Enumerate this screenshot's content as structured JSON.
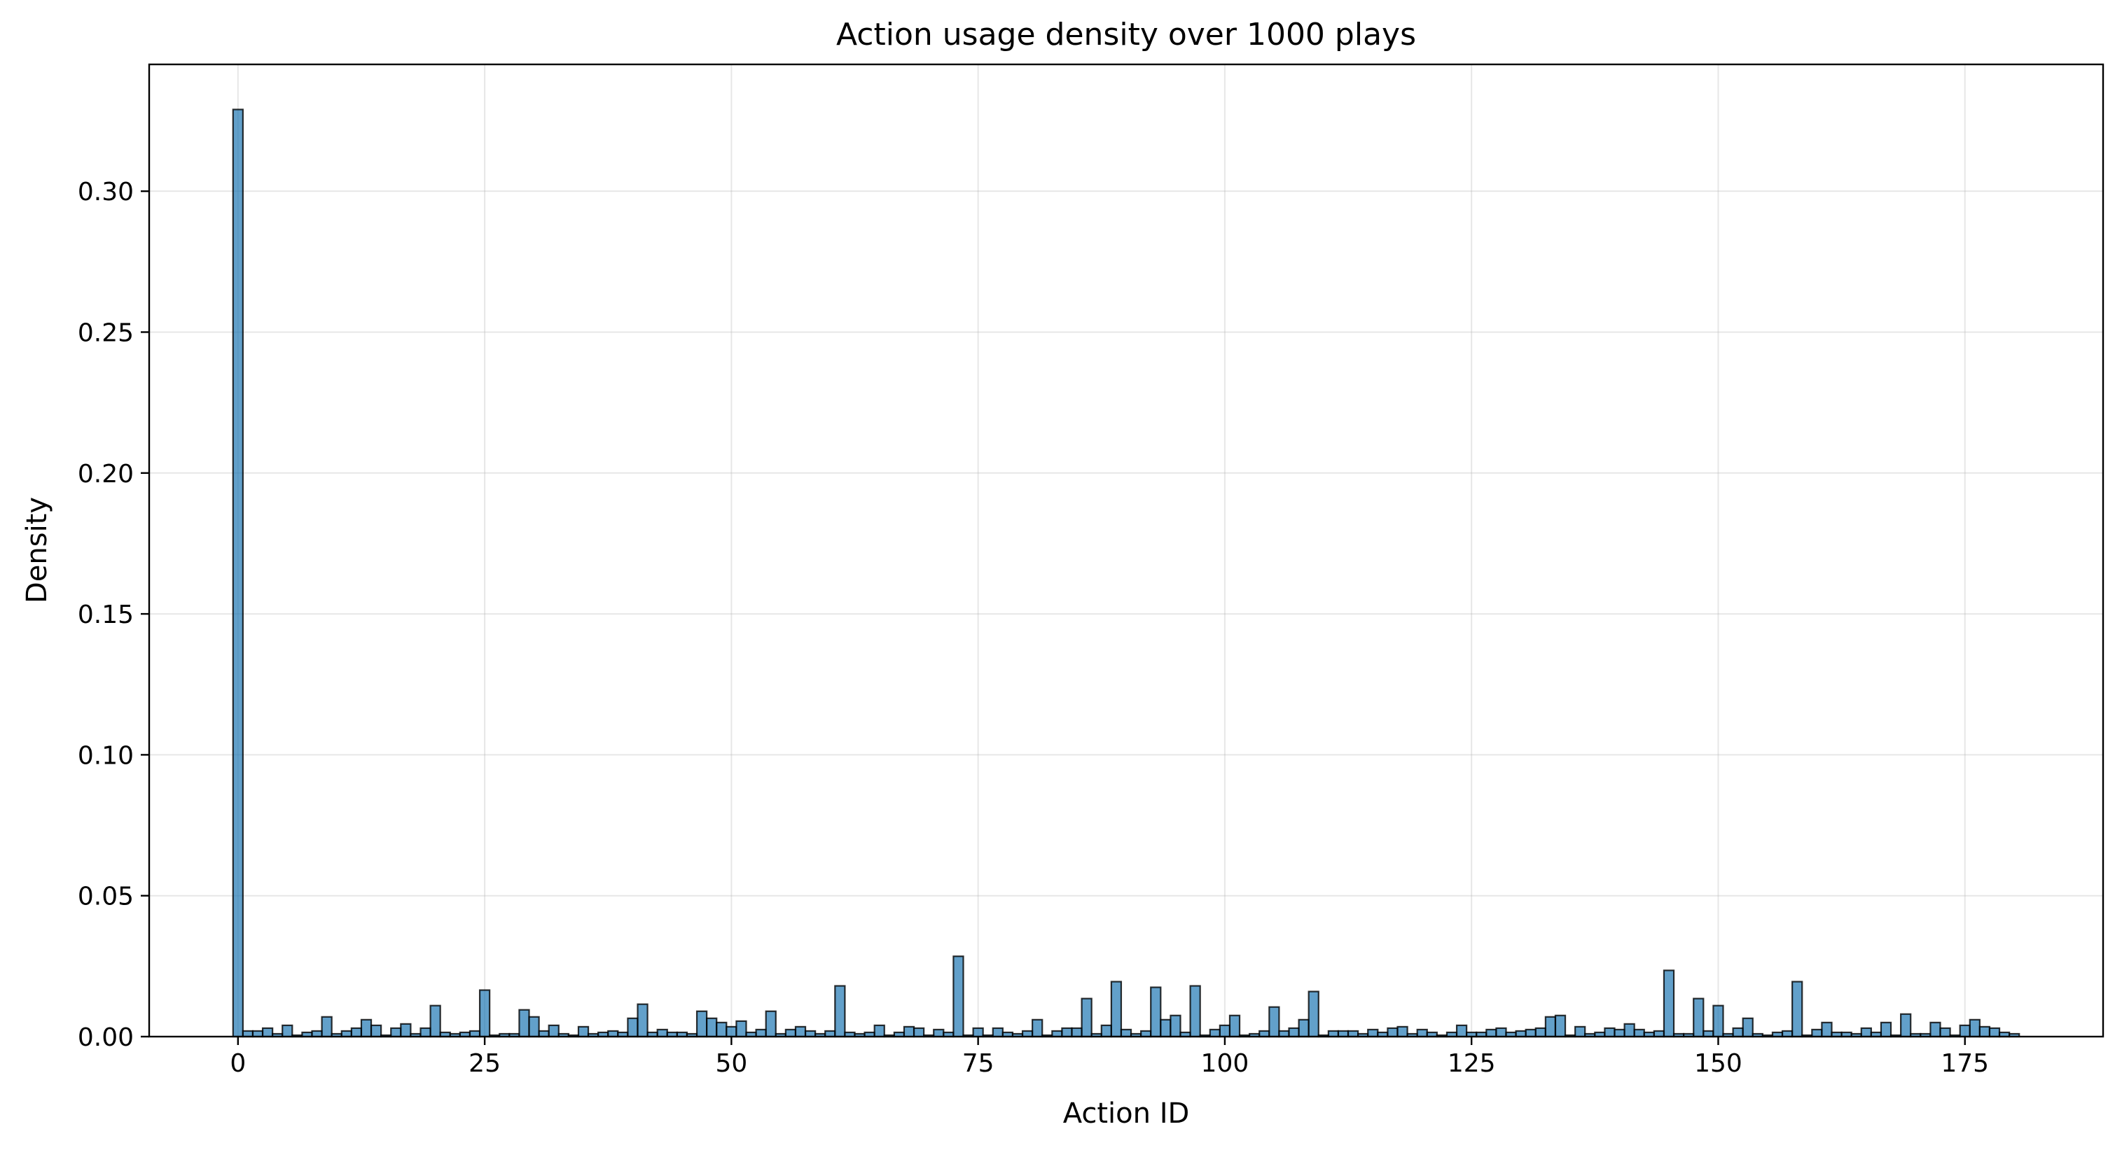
{
  "chart_data": {
    "type": "bar",
    "title": "Action usage density over 1000 plays",
    "xlabel": "Action ID",
    "ylabel": "Density",
    "xlim": [
      -9,
      189
    ],
    "ylim": [
      0,
      0.345
    ],
    "grid": true,
    "bar_color": "#1f77b4",
    "edge_color": "#000000",
    "x_ticks": [
      {
        "value": 0,
        "label": "0"
      },
      {
        "value": 25,
        "label": "25"
      },
      {
        "value": 50,
        "label": "50"
      },
      {
        "value": 75,
        "label": "75"
      },
      {
        "value": 100,
        "label": "100"
      },
      {
        "value": 125,
        "label": "125"
      },
      {
        "value": 150,
        "label": "150"
      },
      {
        "value": 175,
        "label": "175"
      }
    ],
    "y_ticks": [
      {
        "value": 0.0,
        "label": "0.00"
      },
      {
        "value": 0.05,
        "label": "0.05"
      },
      {
        "value": 0.1,
        "label": "0.10"
      },
      {
        "value": 0.15,
        "label": "0.15"
      },
      {
        "value": 0.2,
        "label": "0.20"
      },
      {
        "value": 0.25,
        "label": "0.25"
      },
      {
        "value": 0.3,
        "label": "0.30"
      }
    ],
    "bin_start": 0,
    "bin_width": 1,
    "values": [
      0.329,
      0.002,
      0.002,
      0.003,
      0.001,
      0.004,
      0.0005,
      0.0015,
      0.002,
      0.007,
      0.001,
      0.002,
      0.003,
      0.006,
      0.004,
      0.0005,
      0.003,
      0.0045,
      0.001,
      0.003,
      0.011,
      0.0015,
      0.001,
      0.0015,
      0.002,
      0.0165,
      0.0005,
      0.001,
      0.001,
      0.0095,
      0.007,
      0.002,
      0.004,
      0.001,
      0.0005,
      0.0035,
      0.001,
      0.0015,
      0.002,
      0.0015,
      0.0065,
      0.0115,
      0.0015,
      0.0025,
      0.0015,
      0.0015,
      0.001,
      0.009,
      0.0065,
      0.005,
      0.0035,
      0.0055,
      0.0015,
      0.0025,
      0.009,
      0.001,
      0.0025,
      0.0035,
      0.002,
      0.001,
      0.002,
      0.018,
      0.0015,
      0.001,
      0.0015,
      0.004,
      0.0005,
      0.0015,
      0.0035,
      0.003,
      0.0005,
      0.0025,
      0.0015,
      0.0285,
      0.0005,
      0.003,
      0.0005,
      0.003,
      0.0015,
      0.001,
      0.002,
      0.006,
      0.0005,
      0.002,
      0.003,
      0.003,
      0.0135,
      0.001,
      0.004,
      0.0195,
      0.0025,
      0.001,
      0.002,
      0.0175,
      0.006,
      0.0075,
      0.0015,
      0.018,
      0.0005,
      0.0025,
      0.004,
      0.0075,
      0.0005,
      0.001,
      0.002,
      0.0105,
      0.002,
      0.003,
      0.006,
      0.016,
      0.0005,
      0.002,
      0.002,
      0.002,
      0.001,
      0.0025,
      0.0015,
      0.003,
      0.0035,
      0.001,
      0.0025,
      0.0015,
      0.0005,
      0.0015,
      0.004,
      0.0015,
      0.0015,
      0.0025,
      0.003,
      0.0015,
      0.002,
      0.0025,
      0.003,
      0.007,
      0.0075,
      0.0005,
      0.0035,
      0.001,
      0.0015,
      0.003,
      0.0025,
      0.0045,
      0.0025,
      0.0015,
      0.002,
      0.0235,
      0.001,
      0.001,
      0.0135,
      0.002,
      0.011,
      0.001,
      0.003,
      0.0065,
      0.001,
      0.0005,
      0.0015,
      0.002,
      0.0195,
      0.0005,
      0.0025,
      0.005,
      0.0015,
      0.0015,
      0.001,
      0.003,
      0.0015,
      0.005,
      0.0005,
      0.008,
      0.001,
      0.001,
      0.005,
      0.003,
      0.0005,
      0.004,
      0.006,
      0.0035,
      0.003,
      0.0015,
      0.001
    ]
  }
}
